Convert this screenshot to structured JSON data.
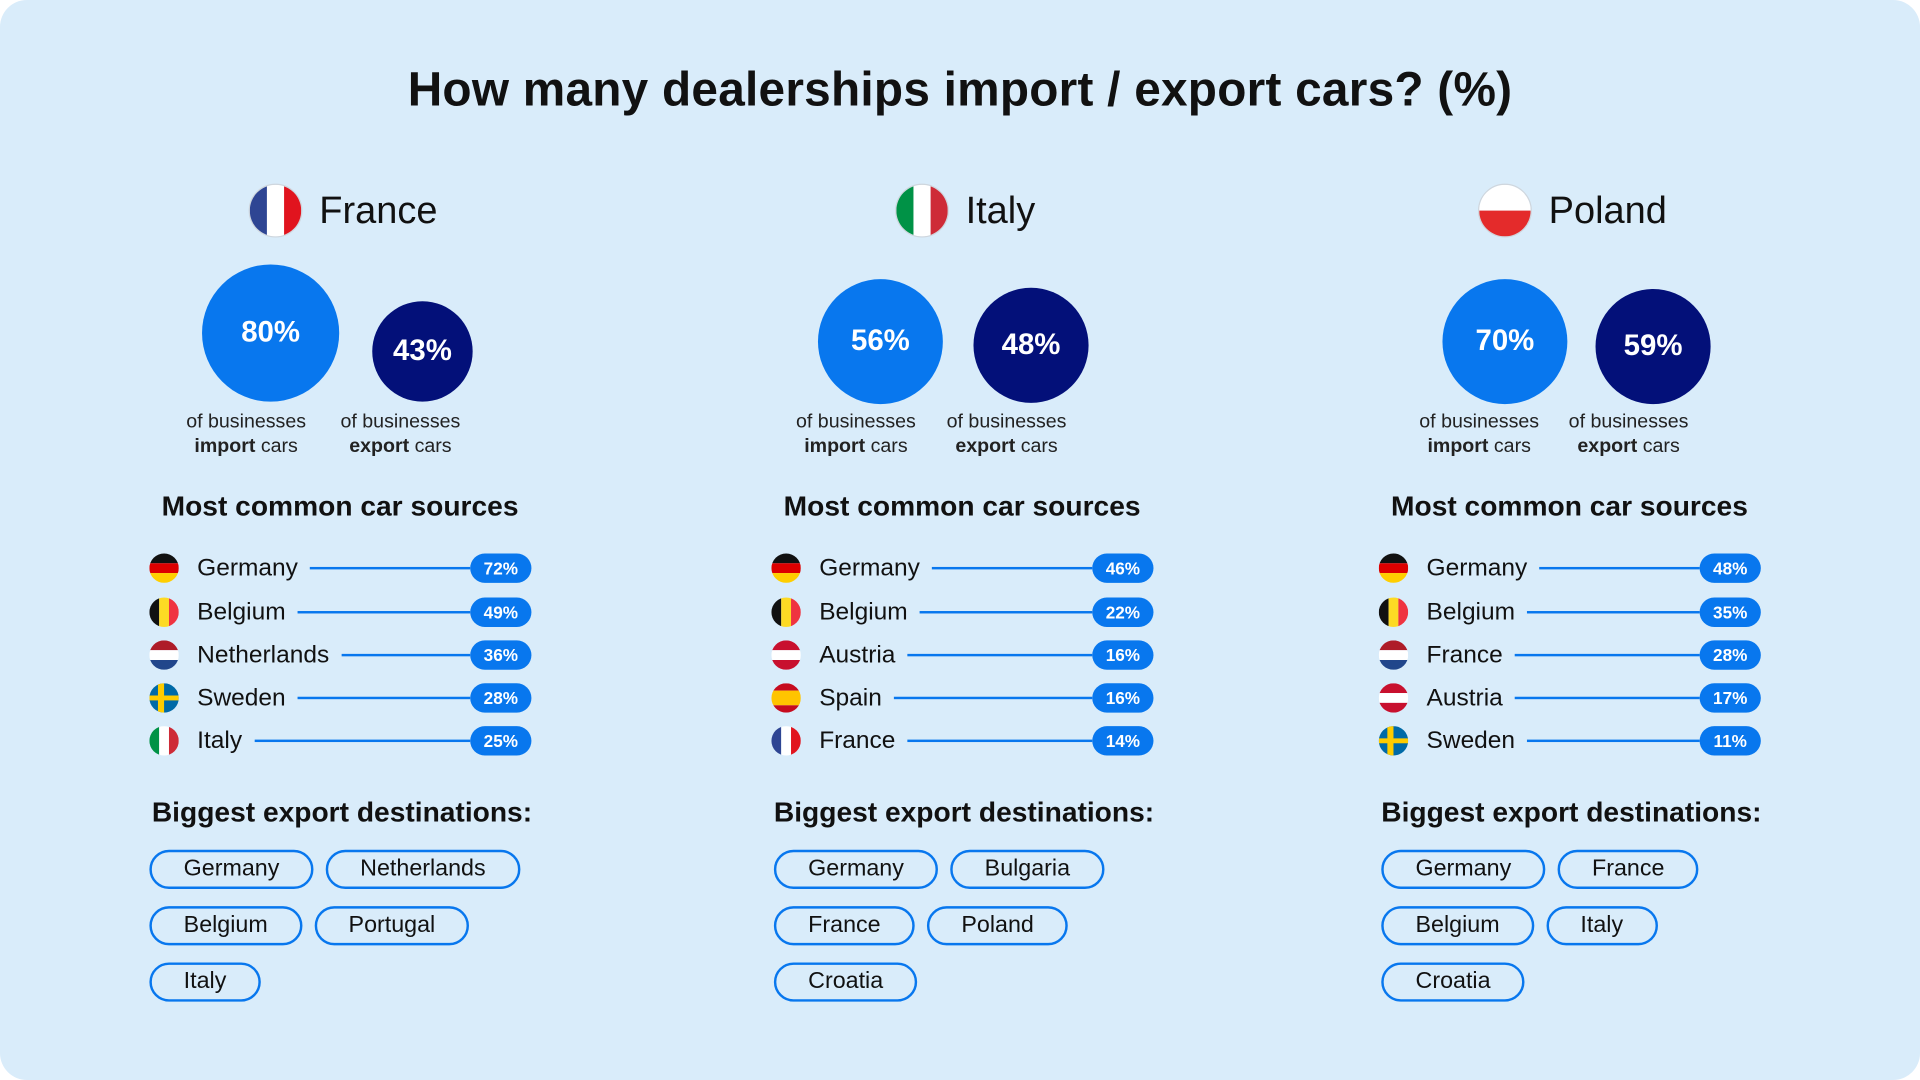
{
  "title": "How many dealerships import / export cars? (%)",
  "colors": {
    "background": "#d9ecfa",
    "import": "#0877ee",
    "export": "#031079",
    "accent": "#0877ee"
  },
  "captions": {
    "prefix": "of businesses",
    "import_bold": "import",
    "export_bold": "export",
    "suffix": "cars"
  },
  "sections": {
    "sources_title": "Most common car sources",
    "export_title": "Biggest export destinations:"
  },
  "countries": [
    {
      "name": "France",
      "flag": "france-flag",
      "import_pct": "80%",
      "export_pct": "43%",
      "sources": [
        {
          "name": "Germany",
          "flag": "germany",
          "pct": "72%"
        },
        {
          "name": "Belgium",
          "flag": "belgium",
          "pct": "49%"
        },
        {
          "name": "Netherlands",
          "flag": "netherlands",
          "pct": "36%"
        },
        {
          "name": "Sweden",
          "flag": "sweden",
          "pct": "28%"
        },
        {
          "name": "Italy",
          "flag": "italy",
          "pct": "25%"
        }
      ],
      "exports": [
        "Germany",
        "Netherlands",
        "Belgium",
        "Portugal",
        "Italy"
      ]
    },
    {
      "name": "Italy",
      "flag": "italy-flag",
      "import_pct": "56%",
      "export_pct": "48%",
      "sources": [
        {
          "name": "Germany",
          "flag": "germany",
          "pct": "46%"
        },
        {
          "name": "Belgium",
          "flag": "belgium",
          "pct": "22%"
        },
        {
          "name": "Austria",
          "flag": "austria",
          "pct": "16%"
        },
        {
          "name": "Spain",
          "flag": "spain",
          "pct": "16%"
        },
        {
          "name": "France",
          "flag": "france",
          "pct": "14%"
        }
      ],
      "exports": [
        "Germany",
        "Bulgaria",
        "France",
        "Poland",
        "Croatia"
      ]
    },
    {
      "name": "Poland",
      "flag": "poland-flag",
      "import_pct": "70%",
      "export_pct": "59%",
      "sources": [
        {
          "name": "Germany",
          "flag": "germany",
          "pct": "48%"
        },
        {
          "name": "Belgium",
          "flag": "belgium",
          "pct": "35%"
        },
        {
          "name": "France",
          "flag": "netherlands",
          "pct": "28%"
        },
        {
          "name": "Austria",
          "flag": "austria",
          "pct": "17%"
        },
        {
          "name": "Sweden",
          "flag": "sweden",
          "pct": "11%"
        }
      ],
      "exports": [
        "Germany",
        "France",
        "Belgium",
        "Italy",
        "Croatia"
      ]
    }
  ],
  "chart_data": [
    {
      "type": "bar",
      "title": "France – import / export",
      "categories": [
        "Import",
        "Export"
      ],
      "values": [
        80,
        43
      ],
      "ylabel": "% of businesses"
    },
    {
      "type": "bar",
      "title": "Italy – import / export",
      "categories": [
        "Import",
        "Export"
      ],
      "values": [
        56,
        48
      ],
      "ylabel": "% of businesses"
    },
    {
      "type": "bar",
      "title": "Poland – import / export",
      "categories": [
        "Import",
        "Export"
      ],
      "values": [
        70,
        59
      ],
      "ylabel": "% of businesses"
    },
    {
      "type": "bar",
      "title": "France – Most common car sources",
      "categories": [
        "Germany",
        "Belgium",
        "Netherlands",
        "Sweden",
        "Italy"
      ],
      "values": [
        72,
        49,
        36,
        28,
        25
      ]
    },
    {
      "type": "bar",
      "title": "Italy – Most common car sources",
      "categories": [
        "Germany",
        "Belgium",
        "Austria",
        "Spain",
        "France"
      ],
      "values": [
        46,
        22,
        16,
        16,
        14
      ]
    },
    {
      "type": "bar",
      "title": "Poland – Most common car sources",
      "categories": [
        "Germany",
        "Belgium",
        "France",
        "Austria",
        "Sweden"
      ],
      "values": [
        48,
        35,
        28,
        17,
        11
      ]
    },
    {
      "type": "table",
      "title": "Biggest export destinations",
      "columns": [
        "France",
        "Italy",
        "Poland"
      ],
      "rows": [
        [
          "Germany",
          "Germany",
          "Germany"
        ],
        [
          "Netherlands",
          "Bulgaria",
          "France"
        ],
        [
          "Belgium",
          "France",
          "Belgium"
        ],
        [
          "Portugal",
          "Poland",
          "Italy"
        ],
        [
          "Italy",
          "Croatia",
          "Croatia"
        ]
      ]
    }
  ]
}
